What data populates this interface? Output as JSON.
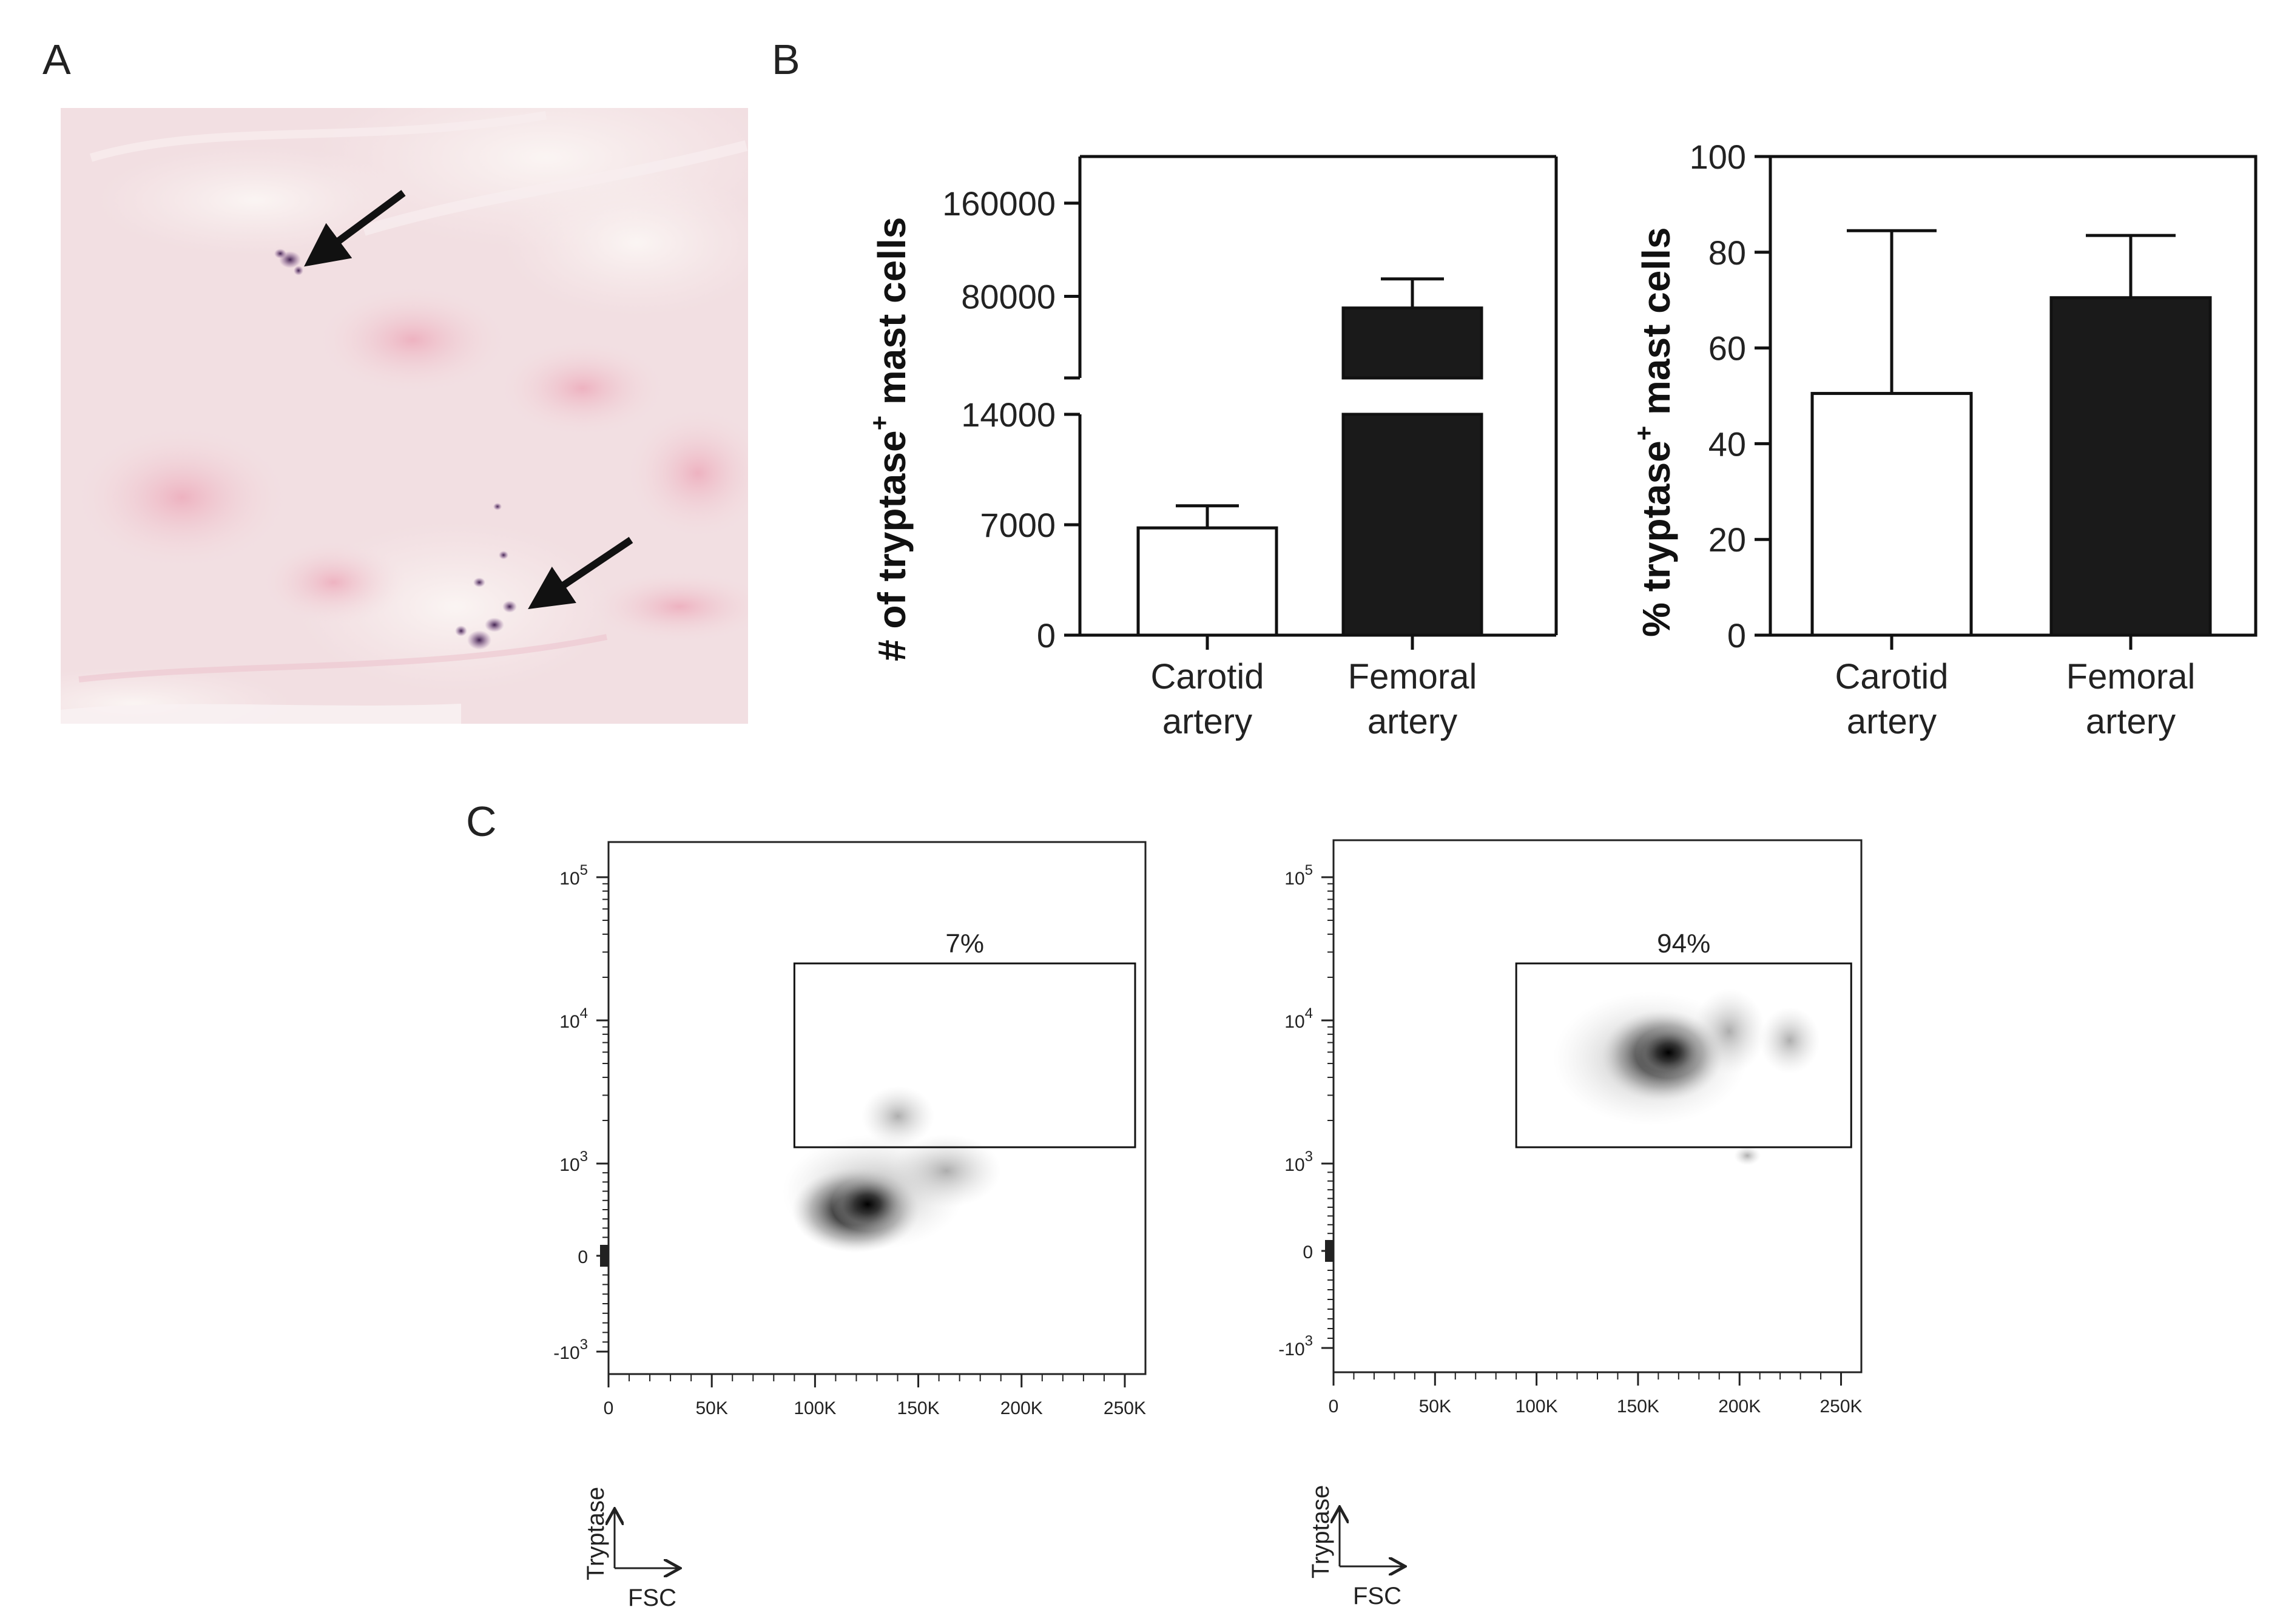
{
  "panel_labels": {
    "a": "A",
    "b": "B",
    "c": "C"
  },
  "micrograph": {
    "background_color": "#f2dfe2",
    "stain_color": "#4a2a5a",
    "arrow_color": "#111111"
  },
  "chart_data": [
    {
      "type": "bar",
      "panel": "B-left",
      "ylabel_main": "# of tryptase",
      "ylabel_sup": "+",
      "ylabel_tail": " mast cells",
      "categories": [
        [
          "Carotid",
          "artery"
        ],
        [
          "Femoral",
          "artery"
        ]
      ],
      "values": [
        6800,
        70000
      ],
      "errors": [
        1400,
        25000
      ],
      "bar_colors": [
        "#ffffff",
        "#1a1a1a"
      ],
      "axis_break": true,
      "lower_segment": {
        "range": [
          0,
          14000
        ],
        "ticks": [
          0,
          7000,
          14000
        ],
        "tick_labels": [
          "0",
          "7000",
          "14000"
        ]
      },
      "upper_segment": {
        "range": [
          10000,
          200000
        ],
        "ticks": [
          80000,
          160000
        ],
        "tick_labels": [
          "80000",
          "160000"
        ]
      }
    },
    {
      "type": "bar",
      "panel": "B-right",
      "ylabel_main": "% tryptase",
      "ylabel_sup": "+",
      "ylabel_tail": " mast cells",
      "categories": [
        [
          "Carotid",
          "artery"
        ],
        [
          "Femoral",
          "artery"
        ]
      ],
      "values": [
        50.5,
        70.5
      ],
      "errors": [
        34,
        13
      ],
      "bar_colors": [
        "#ffffff",
        "#1a1a1a"
      ],
      "ylim": [
        0,
        100
      ],
      "ticks": [
        0,
        20,
        40,
        60,
        80,
        100
      ],
      "tick_labels": [
        "0",
        "20",
        "40",
        "60",
        "80",
        "100"
      ]
    },
    {
      "type": "scatter",
      "panel": "C-left",
      "subtype": "flow cytometry density plot",
      "xlabel": "FSC",
      "ylabel": "Tryptase",
      "x_ticks": [
        0,
        50000,
        100000,
        150000,
        200000,
        250000
      ],
      "x_tick_labels": [
        "0",
        "50K",
        "100K",
        "150K",
        "200K",
        "250K"
      ],
      "y_tick_labels": [
        {
          "base": "10",
          "exp": "5",
          "value": 100000
        },
        {
          "base": "10",
          "exp": "4",
          "value": 10000
        },
        {
          "base": "10",
          "exp": "3",
          "value": 1000
        },
        {
          "base": "0",
          "exp": "",
          "value": 0
        },
        {
          "base": "-10",
          "exp": "3",
          "value": -1000
        }
      ],
      "gate": {
        "x_range": [
          90000,
          255000
        ],
        "y_range": [
          1300,
          25000
        ],
        "label": "7%"
      },
      "population_center": {
        "x": 125000,
        "y": 500
      }
    },
    {
      "type": "scatter",
      "panel": "C-right",
      "subtype": "flow cytometry density plot",
      "xlabel": "FSC",
      "ylabel": "Tryptase",
      "x_ticks": [
        0,
        50000,
        100000,
        150000,
        200000,
        250000
      ],
      "x_tick_labels": [
        "0",
        "50K",
        "100K",
        "150K",
        "200K",
        "250K"
      ],
      "y_tick_labels": [
        {
          "base": "10",
          "exp": "5",
          "value": 100000
        },
        {
          "base": "10",
          "exp": "4",
          "value": 10000
        },
        {
          "base": "10",
          "exp": "3",
          "value": 1000
        },
        {
          "base": "0",
          "exp": "",
          "value": 0
        },
        {
          "base": "-10",
          "exp": "3",
          "value": -1000
        }
      ],
      "gate": {
        "x_range": [
          90000,
          255000
        ],
        "y_range": [
          1300,
          25000
        ],
        "label": "94%"
      },
      "population_center": {
        "x": 165000,
        "y": 6000
      }
    }
  ]
}
